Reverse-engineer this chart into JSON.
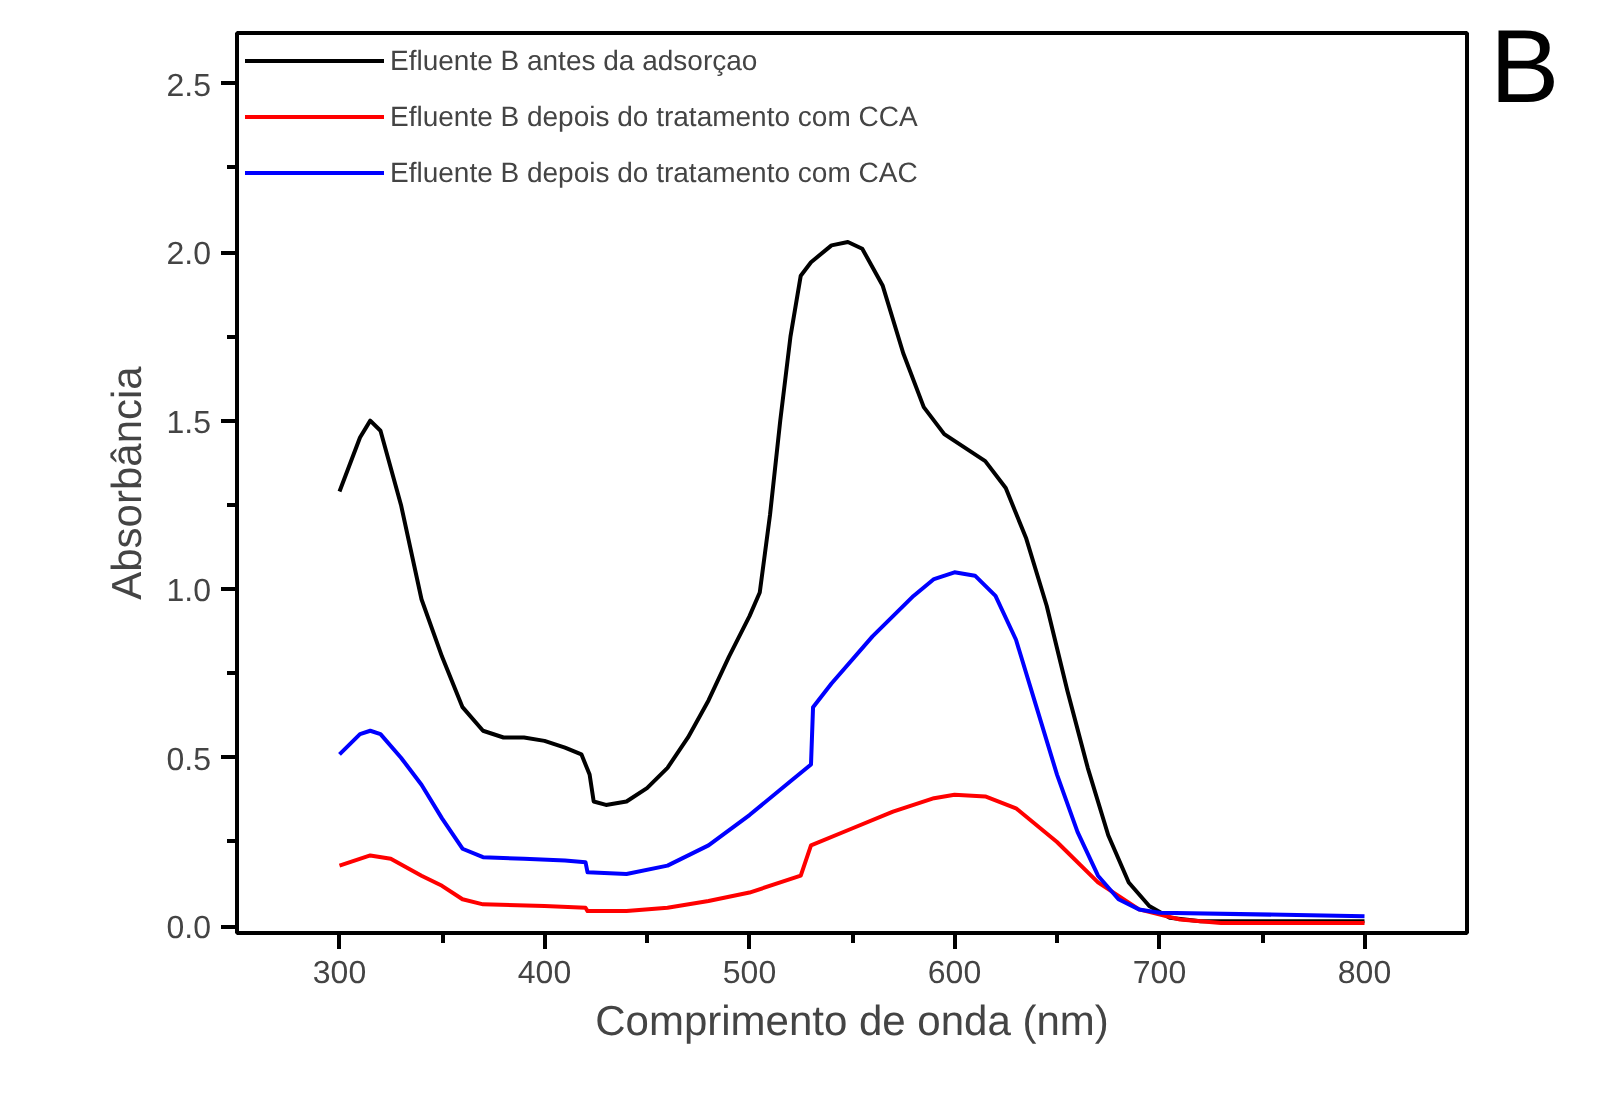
{
  "chart_data": {
    "type": "line",
    "xlabel": "Comprimento de onda (nm)",
    "ylabel": "Absorbância",
    "annotations": [
      "B"
    ],
    "xlim": [
      250,
      850
    ],
    "ylim": [
      -0.02,
      2.65
    ],
    "xticks": [
      300,
      400,
      500,
      600,
      700,
      800
    ],
    "yticks": [
      {
        "value": 0,
        "label": "0.0"
      },
      {
        "value": 0.5,
        "label": "0.5"
      },
      {
        "value": 1,
        "label": "1.0"
      },
      {
        "value": 1.5,
        "label": "1.5"
      },
      {
        "value": 2,
        "label": "2.0"
      },
      {
        "value": 2.5,
        "label": "2.5"
      }
    ],
    "grid": false,
    "legend": "top left",
    "marker": "none",
    "line_style": "solid",
    "series": [
      {
        "name": "Efluente B antes da adsorçao",
        "color": "#000000",
        "x": [
          300,
          310,
          315,
          320,
          330,
          340,
          350,
          360,
          370,
          380,
          390,
          400,
          410,
          418,
          422,
          424,
          430,
          440,
          450,
          460,
          470,
          480,
          490,
          500,
          505,
          510,
          515,
          520,
          525,
          530,
          540,
          548,
          555,
          565,
          575,
          585,
          595,
          605,
          615,
          625,
          635,
          645,
          655,
          665,
          675,
          685,
          695,
          705,
          720,
          800
        ],
        "values": [
          1.29,
          1.45,
          1.5,
          1.47,
          1.25,
          0.97,
          0.8,
          0.65,
          0.58,
          0.56,
          0.56,
          0.55,
          0.53,
          0.51,
          0.45,
          0.37,
          0.36,
          0.37,
          0.41,
          0.47,
          0.56,
          0.67,
          0.8,
          0.92,
          0.99,
          1.22,
          1.5,
          1.75,
          1.93,
          1.97,
          2.02,
          2.03,
          2.01,
          1.9,
          1.7,
          1.54,
          1.46,
          1.42,
          1.38,
          1.3,
          1.15,
          0.95,
          0.7,
          0.47,
          0.27,
          0.13,
          0.06,
          0.025,
          0.015,
          0.015
        ]
      },
      {
        "name": "Efluente B depois do tratamento com CCA",
        "color": "#ff0000",
        "x": [
          300,
          315,
          325,
          340,
          350,
          360,
          370,
          400,
          420,
          421,
          440,
          460,
          480,
          500,
          525,
          530,
          550,
          570,
          590,
          600,
          615,
          630,
          650,
          670,
          690,
          710,
          730,
          800
        ],
        "values": [
          0.18,
          0.21,
          0.2,
          0.15,
          0.12,
          0.08,
          0.065,
          0.06,
          0.055,
          0.045,
          0.045,
          0.055,
          0.075,
          0.1,
          0.15,
          0.24,
          0.29,
          0.34,
          0.38,
          0.39,
          0.385,
          0.35,
          0.25,
          0.13,
          0.05,
          0.02,
          0.01,
          0.01
        ]
      },
      {
        "name": "Efluente B depois do tratamento com CAC",
        "color": "#0000ff",
        "x": [
          300,
          310,
          315,
          320,
          330,
          340,
          350,
          360,
          370,
          390,
          410,
          420,
          421,
          440,
          460,
          480,
          500,
          520,
          530,
          531,
          540,
          560,
          580,
          590,
          600,
          610,
          620,
          630,
          640,
          650,
          660,
          670,
          680,
          690,
          700,
          800
        ],
        "values": [
          0.51,
          0.57,
          0.58,
          0.57,
          0.5,
          0.42,
          0.32,
          0.23,
          0.205,
          0.2,
          0.195,
          0.19,
          0.16,
          0.155,
          0.18,
          0.24,
          0.33,
          0.43,
          0.48,
          0.65,
          0.72,
          0.86,
          0.98,
          1.03,
          1.05,
          1.04,
          0.98,
          0.85,
          0.65,
          0.45,
          0.28,
          0.15,
          0.08,
          0.05,
          0.04,
          0.03
        ]
      }
    ]
  }
}
